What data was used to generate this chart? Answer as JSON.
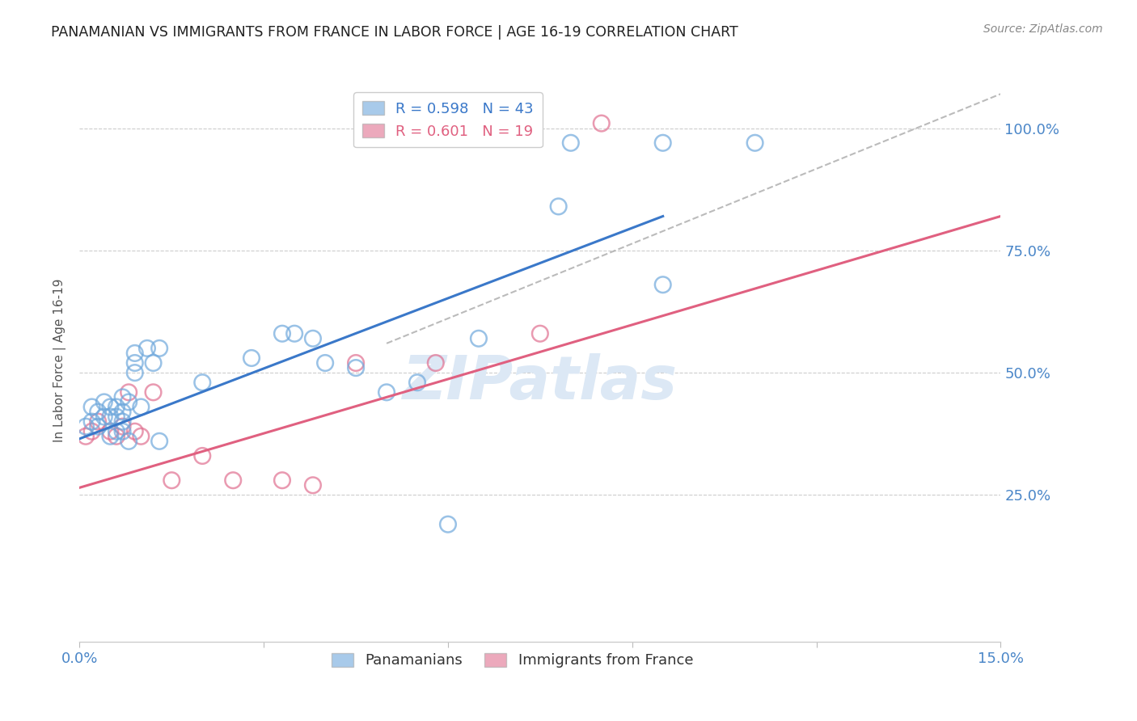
{
  "title": "PANAMANIAN VS IMMIGRANTS FROM FRANCE IN LABOR FORCE | AGE 16-19 CORRELATION CHART",
  "source": "Source: ZipAtlas.com",
  "ylabel": "In Labor Force | Age 16-19",
  "xlim": [
    0.0,
    0.15
  ],
  "ylim": [
    -0.05,
    1.1
  ],
  "yticks": [
    0.25,
    0.5,
    0.75,
    1.0
  ],
  "ytick_labels": [
    "25.0%",
    "50.0%",
    "75.0%",
    "100.0%"
  ],
  "xticks": [
    0.0,
    0.03,
    0.06,
    0.09,
    0.12,
    0.15
  ],
  "xtick_labels": [
    "0.0%",
    "",
    "",
    "",
    "",
    "15.0%"
  ],
  "blue_label": "Panamanians",
  "pink_label": "Immigrants from France",
  "blue_R": "0.598",
  "blue_N": "43",
  "pink_R": "0.601",
  "pink_N": "19",
  "blue_color": "#6fa8dc",
  "pink_color": "#e07090",
  "blue_line_color": "#3a78c9",
  "pink_line_color": "#e06080",
  "ref_line_color": "#aaaaaa",
  "title_color": "#222222",
  "axis_label_color": "#4a86c8",
  "watermark_color": "#dce8f5",
  "blue_x": [
    0.001,
    0.002,
    0.002,
    0.003,
    0.003,
    0.004,
    0.004,
    0.005,
    0.005,
    0.005,
    0.006,
    0.006,
    0.006,
    0.007,
    0.007,
    0.007,
    0.007,
    0.008,
    0.008,
    0.009,
    0.009,
    0.009,
    0.01,
    0.011,
    0.012,
    0.013,
    0.013,
    0.02,
    0.028,
    0.033,
    0.035,
    0.038,
    0.04,
    0.045,
    0.05,
    0.055,
    0.06,
    0.065,
    0.078,
    0.08,
    0.095,
    0.095,
    0.11
  ],
  "blue_y": [
    0.39,
    0.4,
    0.43,
    0.39,
    0.42,
    0.41,
    0.44,
    0.37,
    0.41,
    0.43,
    0.38,
    0.41,
    0.43,
    0.38,
    0.4,
    0.42,
    0.45,
    0.36,
    0.44,
    0.5,
    0.52,
    0.54,
    0.43,
    0.55,
    0.52,
    0.36,
    0.55,
    0.48,
    0.53,
    0.58,
    0.58,
    0.57,
    0.52,
    0.51,
    0.46,
    0.48,
    0.19,
    0.57,
    0.84,
    0.97,
    0.97,
    0.68,
    0.97
  ],
  "pink_x": [
    0.001,
    0.002,
    0.003,
    0.005,
    0.006,
    0.007,
    0.008,
    0.009,
    0.01,
    0.012,
    0.015,
    0.02,
    0.025,
    0.033,
    0.038,
    0.045,
    0.058,
    0.075,
    0.085
  ],
  "pink_y": [
    0.37,
    0.38,
    0.4,
    0.38,
    0.37,
    0.39,
    0.46,
    0.38,
    0.37,
    0.46,
    0.28,
    0.33,
    0.28,
    0.28,
    0.27,
    0.52,
    0.52,
    0.58,
    1.01
  ],
  "blue_line_x": [
    0.0,
    0.095
  ],
  "blue_line_y": [
    0.365,
    0.82
  ],
  "pink_line_x": [
    0.0,
    0.15
  ],
  "pink_line_y": [
    0.265,
    0.82
  ],
  "ref_line_x": [
    0.05,
    0.15
  ],
  "ref_line_y": [
    0.56,
    1.07
  ]
}
